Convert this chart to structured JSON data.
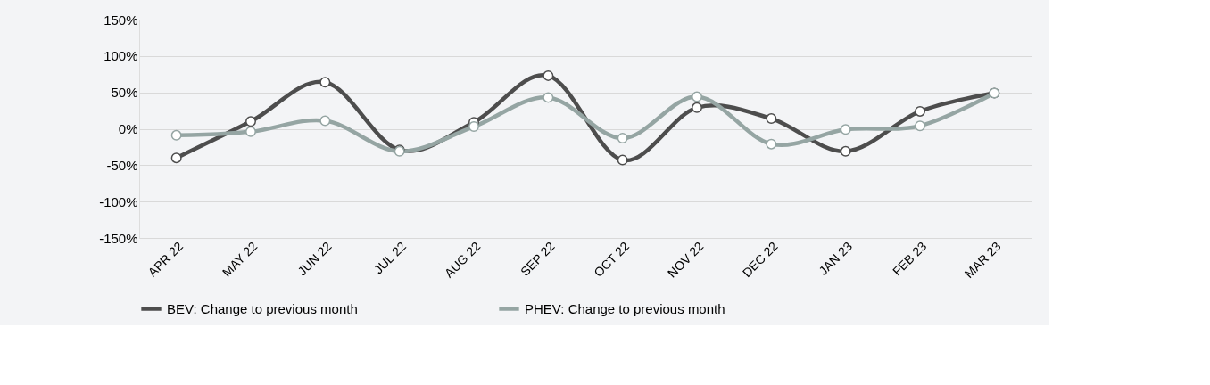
{
  "chart_data": {
    "type": "line",
    "categories": [
      "APR 22",
      "MAY 22",
      "JUN 22",
      "JUL 22",
      "AUG 22",
      "SEP 22",
      "OCT 22",
      "NOV 22",
      "DEC 22",
      "JAN 23",
      "FEB 23",
      "MAR 23"
    ],
    "series": [
      {
        "name": "BEV: Change to previous month",
        "color": "#4d4d4d",
        "values": [
          -40,
          10,
          64,
          -29,
          9,
          73,
          -43,
          29,
          14,
          -31,
          24,
          49
        ]
      },
      {
        "name": "PHEV: Change to previous month",
        "color": "#95a5a3",
        "values": [
          -9,
          -4,
          11,
          -31,
          3,
          43,
          -13,
          44,
          -21,
          -1,
          4,
          49
        ]
      }
    ],
    "ylim": [
      -150,
      150
    ],
    "yticks": [
      {
        "value": -150,
        "label": "-150%"
      },
      {
        "value": -100,
        "label": "-100%"
      },
      {
        "value": -50,
        "label": "-50%"
      },
      {
        "value": 0,
        "label": "0%"
      },
      {
        "value": 50,
        "label": "50%"
      },
      {
        "value": 100,
        "label": "100%"
      },
      {
        "value": 150,
        "label": "150%"
      }
    ],
    "grid": "y",
    "legend": "bottom",
    "marker": "circle",
    "line_style": "solid"
  }
}
